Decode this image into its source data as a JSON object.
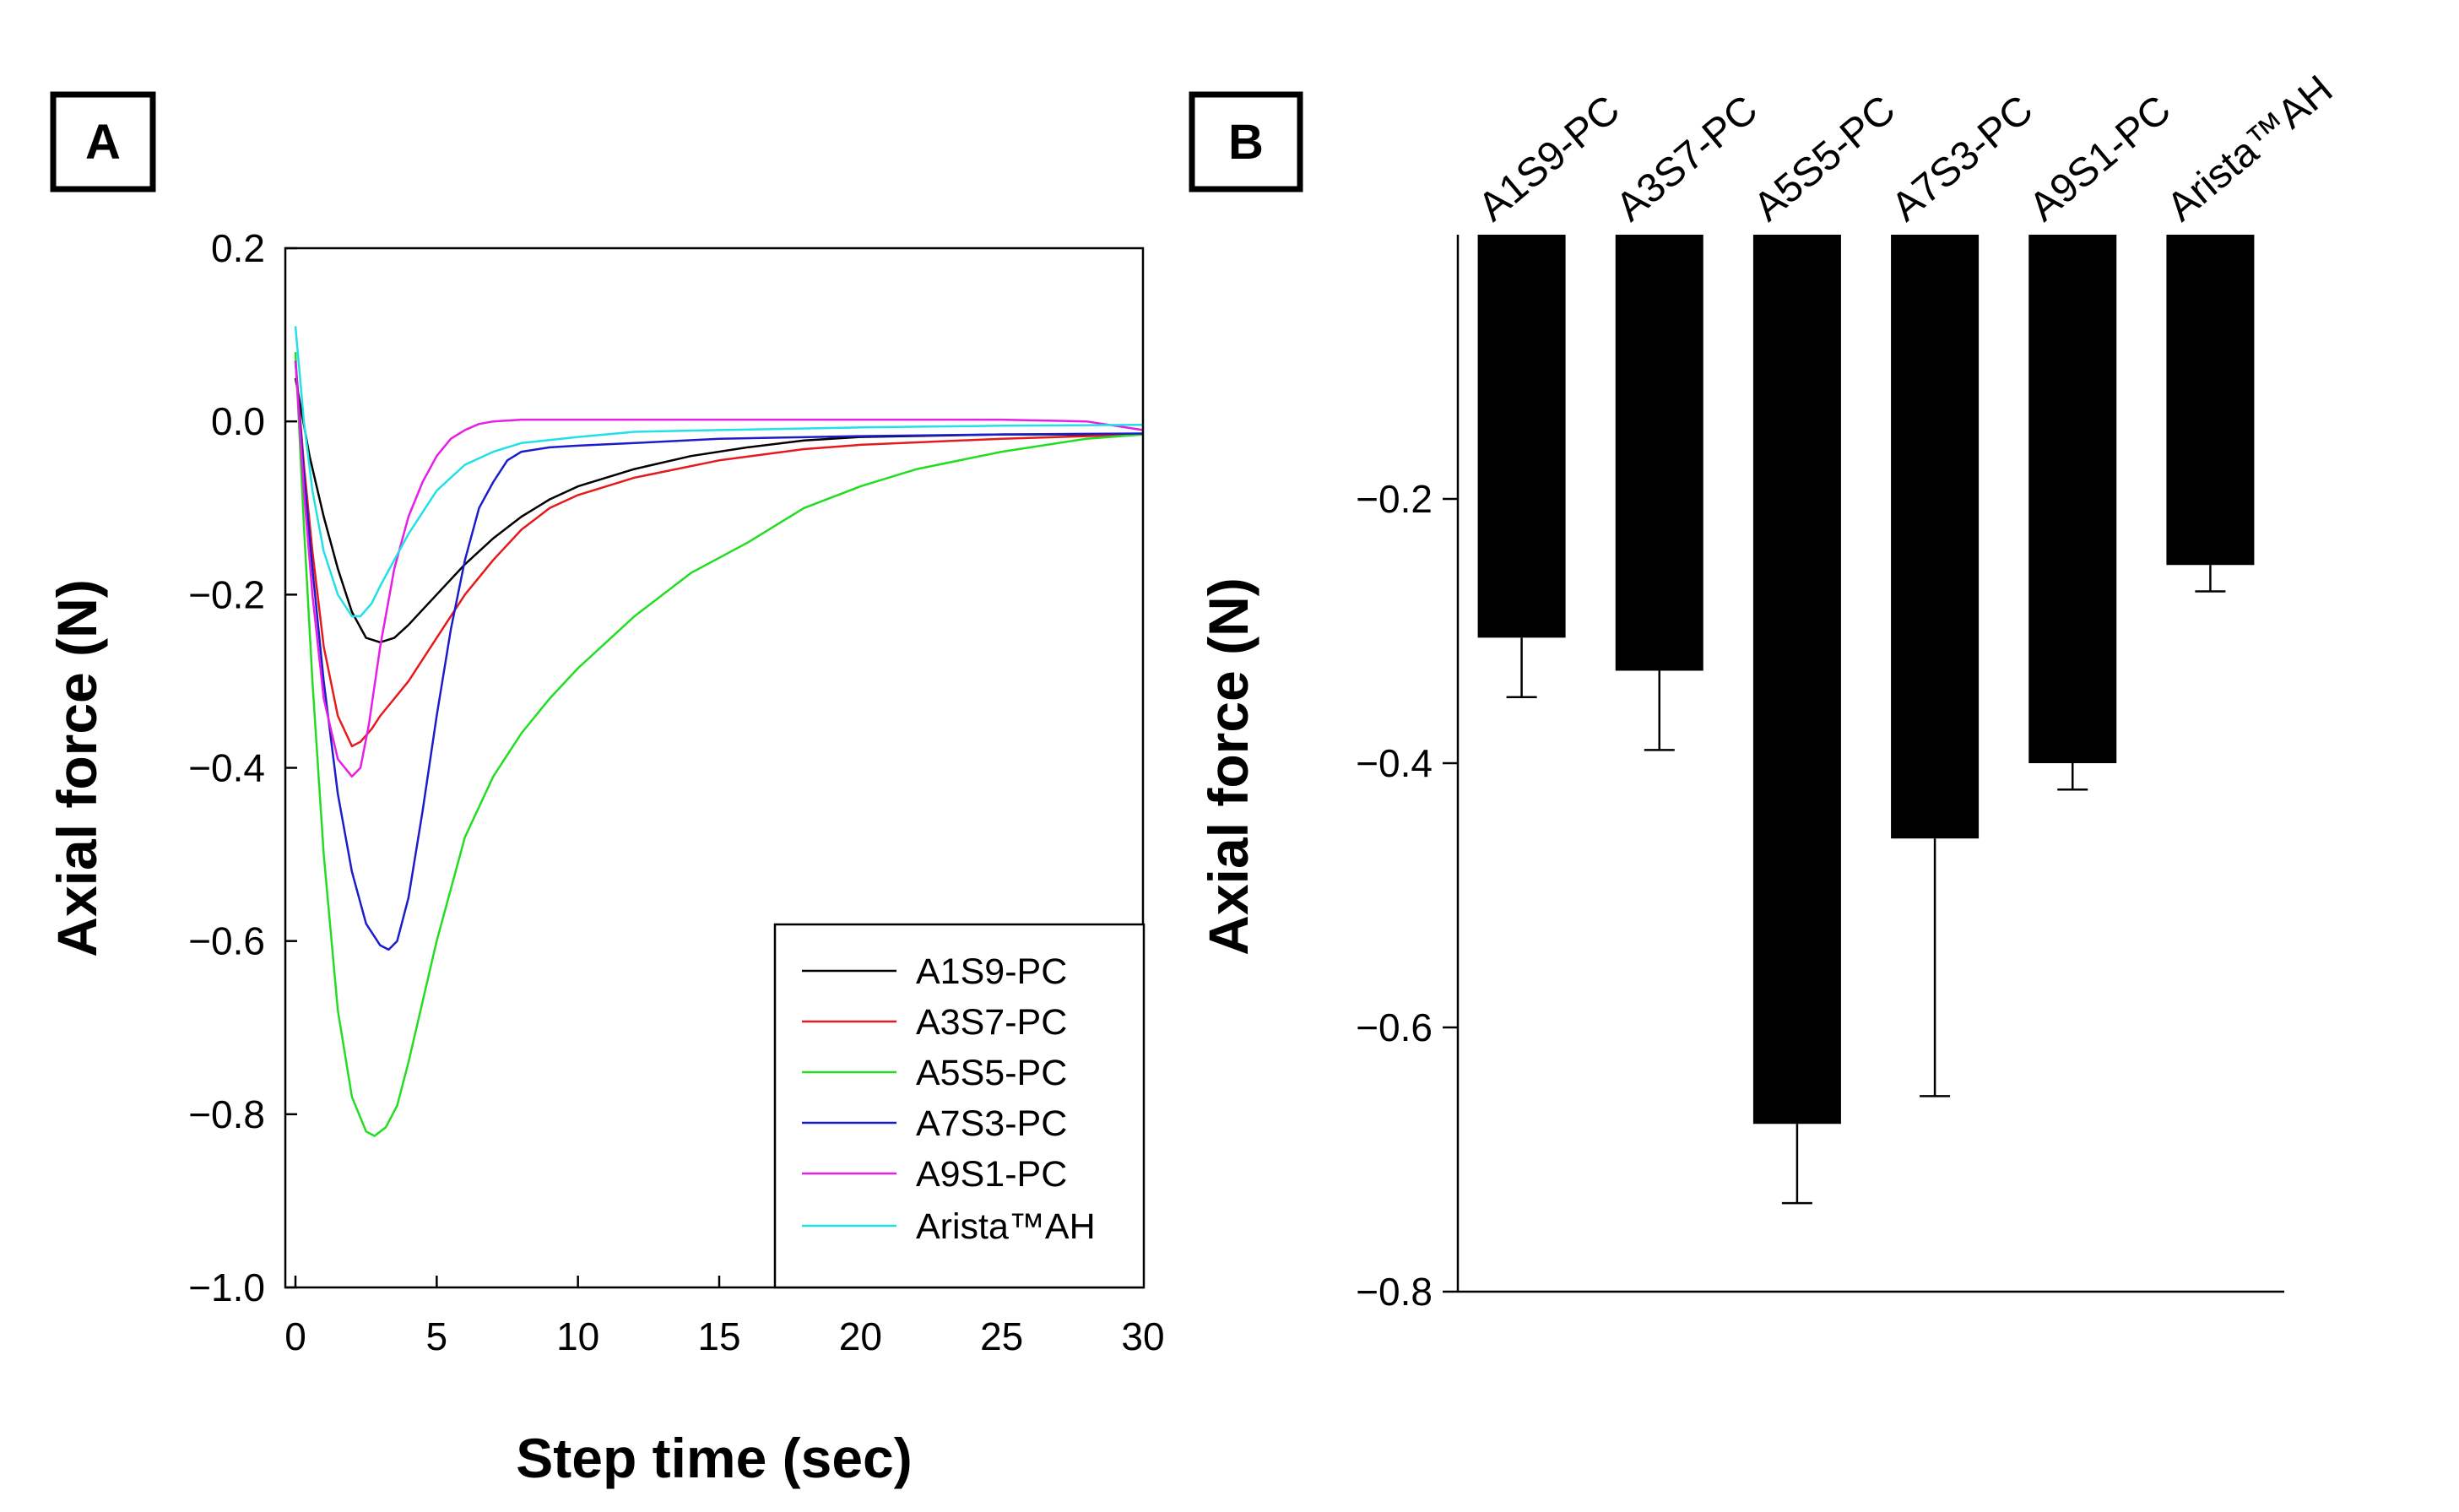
{
  "panels": [
    {
      "letter": "A",
      "chart_data": {
        "type": "line",
        "title": "",
        "xlabel": "Step time (sec)",
        "ylabel": "Axial force (N)",
        "xlim": [
          0,
          30
        ],
        "ylim": [
          -1.0,
          0.2
        ],
        "xticks": [
          "0",
          "5",
          "10",
          "15",
          "20",
          "25",
          "30"
        ],
        "yticks": [
          "0.2",
          "0.0",
          "−0.2",
          "−0.4",
          "−0.6",
          "−0.8",
          "−1.0"
        ],
        "legend_position": "bottom-right",
        "series": [
          {
            "name": "A1S9-PC",
            "color": "#000000",
            "x": [
              0,
              0.5,
              1,
              1.5,
              2,
              2.5,
              3,
              3.5,
              4,
              5,
              6,
              7,
              8,
              9,
              10,
              12,
              14,
              16,
              18,
              20,
              25,
              30
            ],
            "y": [
              0.05,
              -0.04,
              -0.11,
              -0.17,
              -0.22,
              -0.25,
              -0.255,
              -0.25,
              -0.235,
              -0.2,
              -0.165,
              -0.135,
              -0.11,
              -0.09,
              -0.075,
              -0.055,
              -0.04,
              -0.03,
              -0.022,
              -0.018,
              -0.015,
              -0.015
            ]
          },
          {
            "name": "A3S7-PC",
            "color": "#e41a1c",
            "x": [
              0,
              0.3,
              0.6,
              1,
              1.5,
              2,
              2.3,
              2.7,
              3,
              4,
              5,
              6,
              7,
              8,
              9,
              10,
              12,
              15,
              18,
              20,
              25,
              30
            ],
            "y": [
              0.07,
              -0.05,
              -0.15,
              -0.26,
              -0.34,
              -0.375,
              -0.37,
              -0.355,
              -0.34,
              -0.3,
              -0.25,
              -0.2,
              -0.16,
              -0.125,
              -0.1,
              -0.085,
              -0.065,
              -0.045,
              -0.032,
              -0.027,
              -0.02,
              -0.015
            ]
          },
          {
            "name": "A5S5-PC",
            "color": "#22dd22",
            "x": [
              0,
              0.3,
              0.6,
              1,
              1.5,
              2,
              2.5,
              2.8,
              3.2,
              3.6,
              4,
              4.5,
              5,
              6,
              7,
              8,
              9,
              10,
              12,
              14,
              16,
              18,
              20,
              22,
              25,
              28,
              30
            ],
            "y": [
              0.08,
              -0.12,
              -0.3,
              -0.5,
              -0.68,
              -0.78,
              -0.82,
              -0.825,
              -0.815,
              -0.79,
              -0.74,
              -0.67,
              -0.6,
              -0.48,
              -0.41,
              -0.36,
              -0.32,
              -0.285,
              -0.225,
              -0.175,
              -0.14,
              -0.1,
              -0.075,
              -0.055,
              -0.035,
              -0.02,
              -0.015
            ]
          },
          {
            "name": "A7S3-PC",
            "color": "#1c1ccc",
            "x": [
              0,
              0.3,
              0.6,
              1,
              1.5,
              2,
              2.5,
              3,
              3.3,
              3.6,
              4,
              4.5,
              5,
              5.5,
              6,
              6.5,
              7,
              7.5,
              8,
              9,
              10,
              12,
              15,
              20,
              25,
              30
            ],
            "y": [
              0.07,
              -0.06,
              -0.17,
              -0.3,
              -0.43,
              -0.52,
              -0.58,
              -0.605,
              -0.61,
              -0.6,
              -0.55,
              -0.45,
              -0.34,
              -0.24,
              -0.16,
              -0.1,
              -0.07,
              -0.045,
              -0.035,
              -0.03,
              -0.028,
              -0.025,
              -0.02,
              -0.017,
              -0.015,
              -0.014
            ]
          },
          {
            "name": "A9S1-PC",
            "color": "#e61ee6",
            "x": [
              0,
              0.3,
              0.6,
              1,
              1.5,
              2,
              2.3,
              2.6,
              3,
              3.5,
              4,
              4.5,
              5,
              5.5,
              6,
              6.5,
              7,
              8,
              10,
              15,
              20,
              25,
              28,
              30
            ],
            "y": [
              0.07,
              -0.08,
              -0.2,
              -0.32,
              -0.39,
              -0.41,
              -0.4,
              -0.35,
              -0.26,
              -0.17,
              -0.11,
              -0.07,
              -0.04,
              -0.02,
              -0.01,
              -0.003,
              0.0,
              0.002,
              0.002,
              0.002,
              0.002,
              0.002,
              0.0,
              -0.01
            ]
          },
          {
            "name": "Arista™AH",
            "color": "#22e0e8",
            "x": [
              0,
              0.3,
              0.6,
              1,
              1.5,
              2,
              2.3,
              2.7,
              3,
              3.5,
              4,
              5,
              6,
              7,
              8,
              10,
              12,
              15,
              20,
              25,
              30
            ],
            "y": [
              0.11,
              0.0,
              -0.08,
              -0.15,
              -0.2,
              -0.225,
              -0.225,
              -0.21,
              -0.19,
              -0.16,
              -0.13,
              -0.08,
              -0.05,
              -0.035,
              -0.025,
              -0.018,
              -0.012,
              -0.01,
              -0.007,
              -0.005,
              -0.004
            ]
          }
        ]
      }
    },
    {
      "letter": "B",
      "chart_data": {
        "type": "bar",
        "title": "",
        "xlabel": "",
        "ylabel": "Axial force (N)",
        "ylim": [
          -0.8,
          0.0
        ],
        "yticks": [
          "−0.2",
          "−0.4",
          "−0.6",
          "−0.8"
        ],
        "categories": [
          "A1S9-PC",
          "A3S7-PC",
          "A5S5-PC",
          "A7S3-PC",
          "A9S1-PC",
          "Arista™AH"
        ],
        "values": [
          -0.305,
          -0.33,
          -0.673,
          -0.457,
          -0.4,
          -0.25
        ],
        "errors": [
          0.045,
          0.06,
          0.06,
          0.195,
          0.02,
          0.02
        ],
        "bar_color": "#000000"
      }
    }
  ]
}
